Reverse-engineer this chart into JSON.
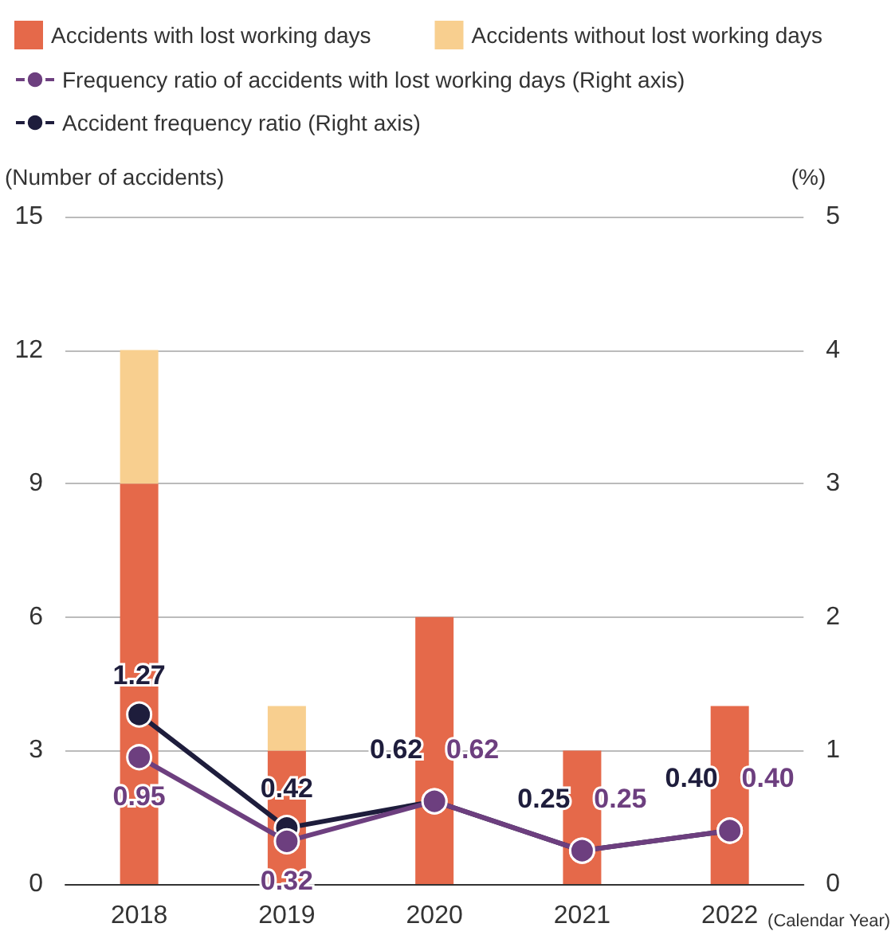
{
  "chart_data": {
    "type": "bar",
    "stacked": true,
    "categories": [
      "2018",
      "2019",
      "2020",
      "2021",
      "2022"
    ],
    "xlabel": "(Calendar Year)",
    "ylabel": "(Number of accidents)",
    "y2label": "(%)",
    "ylim": [
      0,
      15
    ],
    "yticks": [
      0,
      3,
      6,
      9,
      12,
      15
    ],
    "y2lim": [
      0,
      5
    ],
    "y2ticks": [
      0,
      1,
      2,
      3,
      4,
      5
    ],
    "grid": "y",
    "legend": "top left",
    "marker": "circle",
    "line_style": "solid",
    "series": [
      {
        "name": "Accidents with lost working days",
        "color": "#e5694a",
        "values": [
          9,
          3,
          6,
          3,
          4
        ]
      },
      {
        "name": "Accidents without lost working days",
        "color": "#f8cf8f",
        "values": [
          3,
          1,
          0,
          0,
          0
        ]
      },
      {
        "name": "Frequency ratio of accidents with lost working days (Right axis)",
        "type": "line",
        "axis": "y2",
        "color": "#6d3f7f",
        "values": [
          0.95,
          0.32,
          0.62,
          0.25,
          0.4
        ],
        "value_labels": [
          "0.95",
          "0.32",
          "0.62",
          "0.25",
          "0.40"
        ]
      },
      {
        "name": "Accident frequency ratio (Right axis)",
        "type": "line",
        "axis": "y2",
        "color": "#1e1d3c",
        "values": [
          1.27,
          0.42,
          0.62,
          0.25,
          0.4
        ],
        "value_labels": [
          "1.27",
          "0.42",
          "0.62",
          "0.25",
          "0.40"
        ]
      }
    ]
  }
}
